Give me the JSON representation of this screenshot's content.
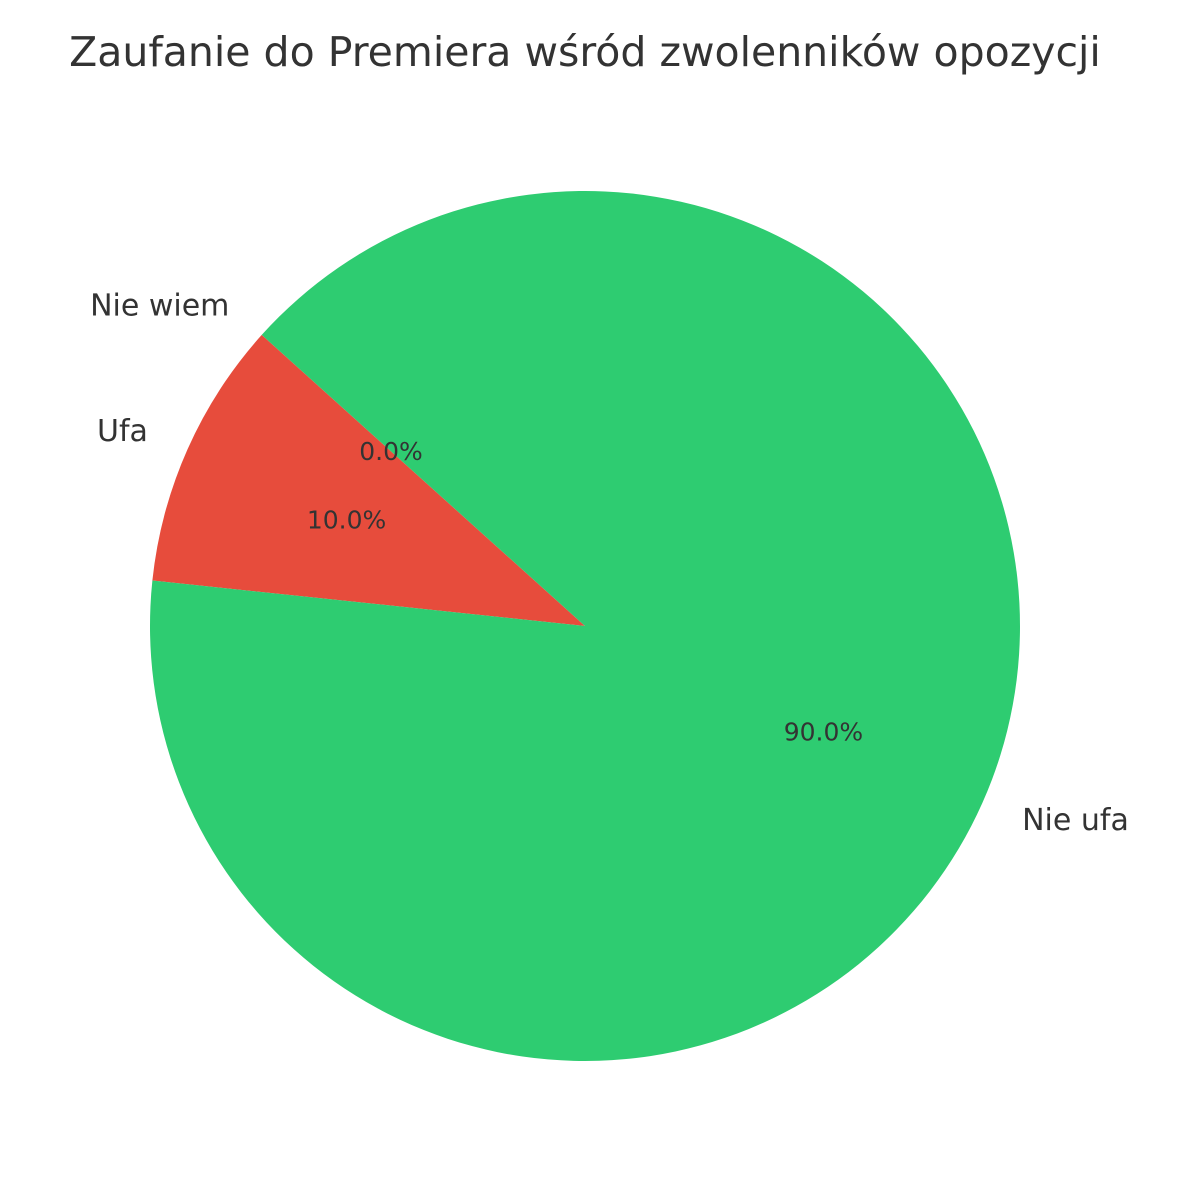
{
  "chart_data": {
    "type": "pie",
    "title": "Zaufanie do Premiera wśród zwolenników opozycji",
    "start_angle_deg": 138,
    "direction": "counterclockwise",
    "slices": [
      {
        "label": "Nie wiem",
        "value": 0.0,
        "percent_label": "0.0%",
        "color": "#3498db"
      },
      {
        "label": "Ufa",
        "value": 10.0,
        "percent_label": "10.0%",
        "color": "#e74c3c"
      },
      {
        "label": "Nie ufa",
        "value": 90.0,
        "percent_label": "90.0%",
        "color": "#2ecc71"
      }
    ]
  }
}
